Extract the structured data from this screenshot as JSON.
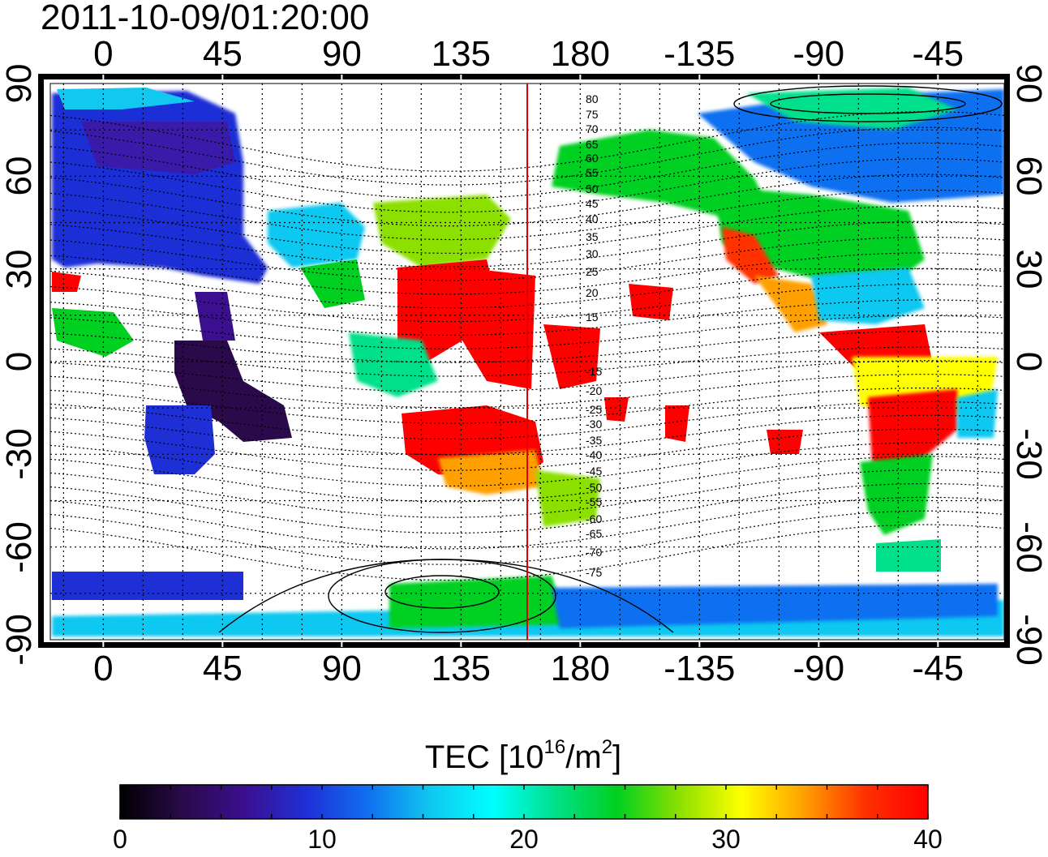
{
  "title": "2011-10-09/01:20:00",
  "colors": {
    "frame": "#000000",
    "terminator_line": "#e00000",
    "grid": "#000000",
    "colormap": [
      "#000000",
      "#2a0a4a",
      "#3b0f8f",
      "#1f2fd6",
      "#1070f0",
      "#10c8f0",
      "#00ffff",
      "#00e08a",
      "#00d020",
      "#8ce000",
      "#ffff00",
      "#ffa000",
      "#ff3000",
      "#ff0000"
    ]
  },
  "map": {
    "lon_ticks_top": [
      "0",
      "45",
      "90",
      "135",
      "180",
      "-135",
      "-90",
      "-45"
    ],
    "lon_ticks_bottom": [
      "0",
      "45",
      "90",
      "135",
      "180",
      "-135",
      "-90",
      "-45"
    ],
    "lat_ticks_left": [
      "90",
      "60",
      "30",
      "0",
      "-30",
      "-60",
      "-90"
    ],
    "lat_ticks_right": [
      "90",
      "60",
      "30",
      "0",
      "-30",
      "-60",
      "-90"
    ],
    "contour_labels": [
      "80",
      "75",
      "70",
      "65",
      "60",
      "55",
      "50",
      "45",
      "40",
      "35",
      "30",
      "25",
      "20",
      "15",
      "-15",
      "-20",
      "-25",
      "-30",
      "-35",
      "-40",
      "-45",
      "-50",
      "-55",
      "-60",
      "-65",
      "-70",
      "-75"
    ],
    "grid": true,
    "terminator_lon": 160
  },
  "colorbar": {
    "title_prefix": "TEC  [10",
    "title_exp1": "16",
    "title_mid": "/m",
    "title_exp2": "2",
    "title_suffix": "]",
    "ticks": [
      "0",
      "10",
      "20",
      "30",
      "40"
    ],
    "min": 0,
    "max": 40
  }
}
